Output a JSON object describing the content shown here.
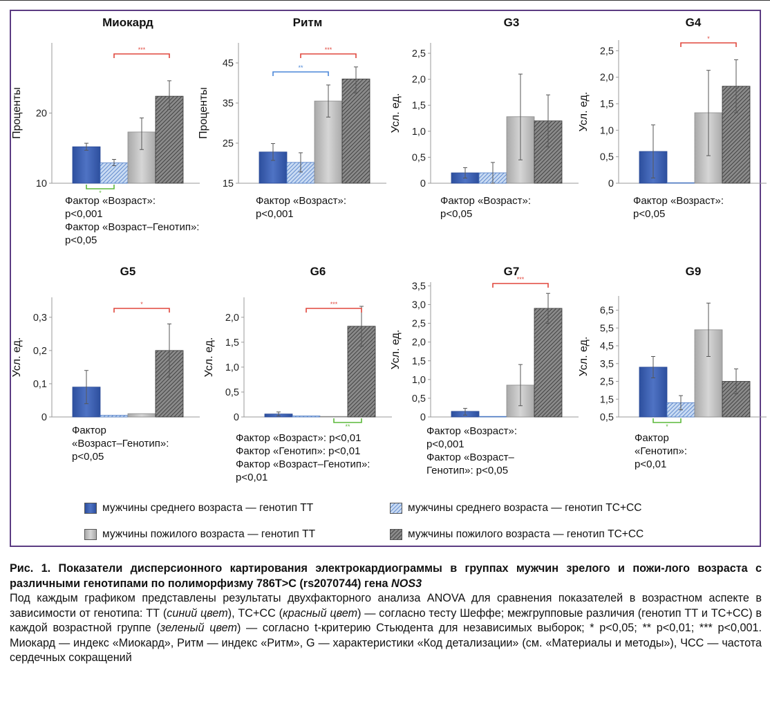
{
  "chart_data": [
    {
      "type": "bar",
      "title": "Миокард",
      "ylabel": "Проценты",
      "ylim": [
        10,
        30
      ],
      "yticks": [
        "10",
        "20"
      ],
      "ytick_values": [
        10,
        20
      ],
      "series": [
        {
          "name": "мужчины среднего возраста — генотип ТТ",
          "value": 15.2,
          "err": [
            14.7,
            15.7
          ]
        },
        {
          "name": "мужчины среднего возраста — генотип ТС+СС",
          "value": 12.9,
          "err": [
            12.5,
            13.4
          ]
        },
        {
          "name": "мужчины пожилого возраста — генотип ТТ",
          "value": 17.3,
          "err": [
            14.8,
            19.3
          ]
        },
        {
          "name": "мужчины пожилого возраста — генотип ТС+СС",
          "value": 22.4,
          "err": [
            20.5,
            24.6
          ]
        }
      ],
      "brackets": [
        {
          "color": "red",
          "from": 1,
          "to": 3,
          "label": "***",
          "pos": "top"
        },
        {
          "color": "green",
          "from": 0,
          "to": 1,
          "label": "*",
          "pos": "bottom"
        }
      ],
      "notes": [
        "Фактор «Возраст»:",
        "p<0,001",
        "Фактор «Возраст–Генотип»:",
        "p<0,05"
      ]
    },
    {
      "type": "bar",
      "title": "Ритм",
      "ylabel": "Проценты",
      "ylim": [
        15,
        50
      ],
      "yticks": [
        "15",
        "25",
        "35",
        "45"
      ],
      "ytick_values": [
        15,
        25,
        35,
        45
      ],
      "series": [
        {
          "name": "ТТ ср.",
          "value": 22.8,
          "err": [
            20.7,
            24.9
          ]
        },
        {
          "name": "ТС+СС ср.",
          "value": 20.2,
          "err": [
            17.8,
            22.6
          ]
        },
        {
          "name": "ТТ пож.",
          "value": 35.5,
          "err": [
            31.5,
            39.5
          ]
        },
        {
          "name": "ТС+СС пож.",
          "value": 41.0,
          "err": [
            37.5,
            44.0
          ]
        }
      ],
      "brackets": [
        {
          "color": "red",
          "from": 1,
          "to": 3,
          "label": "***",
          "pos": "top"
        },
        {
          "color": "blue",
          "from": 0,
          "to": 2,
          "label": "**",
          "pos": "top2"
        }
      ],
      "notes": [
        "Фактор «Возраст»:",
        "p<0,001"
      ]
    },
    {
      "type": "bar",
      "title": "G3",
      "ylabel": "Усл. ед.",
      "ylim": [
        0,
        2.7
      ],
      "yticks": [
        "0",
        "0,5",
        "1,0",
        "1,5",
        "2,0",
        "2,5"
      ],
      "ytick_values": [
        0,
        0.5,
        1,
        1.5,
        2,
        2.5
      ],
      "series": [
        {
          "name": "ТТ ср.",
          "value": 0.2,
          "err": [
            0.1,
            0.3
          ]
        },
        {
          "name": "ТС+СС ср.",
          "value": 0.2,
          "err": [
            0.0,
            0.4
          ]
        },
        {
          "name": "ТТ пож.",
          "value": 1.28,
          "err": [
            0.45,
            2.1
          ]
        },
        {
          "name": "ТС+СС пож.",
          "value": 1.2,
          "err": [
            0.7,
            1.7
          ]
        }
      ],
      "brackets": [],
      "notes": [
        "Фактор «Возраст»:",
        "p<0,05"
      ]
    },
    {
      "type": "bar",
      "title": "G4",
      "ylabel": "Усл. ед.",
      "ylim": [
        0,
        2.7
      ],
      "yticks": [
        "0",
        "0,5",
        "1,0",
        "1,5",
        "2,0",
        "2,5"
      ],
      "ytick_values": [
        0,
        0.5,
        1,
        1.5,
        2,
        2.5
      ],
      "series": [
        {
          "name": "ТТ ср.",
          "value": 0.6,
          "err": [
            0.1,
            1.1
          ]
        },
        {
          "name": "ТС+СС ср.",
          "value": 0.0,
          "err": null
        },
        {
          "name": "ТТ пож.",
          "value": 1.33,
          "err": [
            0.52,
            2.13
          ]
        },
        {
          "name": "ТС+СС пож.",
          "value": 1.83,
          "err": [
            1.33,
            2.33
          ]
        }
      ],
      "brackets": [
        {
          "color": "red",
          "from": 1,
          "to": 3,
          "label": "*",
          "pos": "top"
        }
      ],
      "notes": [
        "Фактор «Возраст»:",
        "p<0,05"
      ]
    },
    {
      "type": "bar",
      "title": "G5",
      "ylabel": "Усл. ед.",
      "ylim": [
        0,
        0.36
      ],
      "yticks": [
        "0",
        "0,1",
        "0,2",
        "0,3"
      ],
      "ytick_values": [
        0,
        0.1,
        0.2,
        0.3
      ],
      "series": [
        {
          "name": "ТТ ср.",
          "value": 0.09,
          "err": [
            0.04,
            0.14
          ]
        },
        {
          "name": "ТС+СС ср.",
          "value": 0.005,
          "err": null
        },
        {
          "name": "ТТ пож.",
          "value": 0.01,
          "err": null
        },
        {
          "name": "ТС+СС пож.",
          "value": 0.2,
          "err": [
            0.12,
            0.28
          ]
        }
      ],
      "brackets": [
        {
          "color": "red",
          "from": 1,
          "to": 3,
          "label": "*",
          "pos": "top"
        }
      ],
      "notes": [
        "Фактор",
        "«Возраст–Генотип»:",
        "p<0,05"
      ]
    },
    {
      "type": "bar",
      "title": "G6",
      "ylabel": "Усл. ед.",
      "ylim": [
        0,
        2.4
      ],
      "yticks": [
        "0",
        "0,5",
        "1,0",
        "1,5",
        "2,0"
      ],
      "ytick_values": [
        0,
        0.5,
        1,
        1.5,
        2
      ],
      "series": [
        {
          "name": "ТТ ср.",
          "value": 0.06,
          "err": [
            0.02,
            0.1
          ]
        },
        {
          "name": "ТС+СС ср.",
          "value": 0.02,
          "err": null
        },
        {
          "name": "ТТ пож.",
          "value": 0.0,
          "err": null
        },
        {
          "name": "ТС+СС пож.",
          "value": 1.82,
          "err": [
            1.42,
            2.22
          ]
        }
      ],
      "brackets": [
        {
          "color": "red",
          "from": 1,
          "to": 3,
          "label": "***",
          "pos": "top"
        },
        {
          "color": "green",
          "from": 2,
          "to": 3,
          "label": "**",
          "pos": "bottom"
        }
      ],
      "notes": [
        "Фактор «Возраст»: p<0,01",
        "Фактор «Генотип»: p<0,01",
        "Фактор «Возраст–Генотип»:",
        "p<0,01"
      ]
    },
    {
      "type": "bar",
      "title": "G7",
      "ylabel": "Усл. ед.",
      "ylim": [
        0,
        3.6
      ],
      "yticks": [
        "0",
        "0,5",
        "1,0",
        "1,5",
        "2,0",
        "2,5",
        "3,0",
        "3,5"
      ],
      "ytick_values": [
        0,
        0.5,
        1,
        1.5,
        2,
        2.5,
        3,
        3.5
      ],
      "series": [
        {
          "name": "ТТ ср.",
          "value": 0.15,
          "err": [
            0.05,
            0.23
          ]
        },
        {
          "name": "ТС+СС ср.",
          "value": 0.0,
          "err": null
        },
        {
          "name": "ТТ пож.",
          "value": 0.85,
          "err": [
            0.3,
            1.4
          ]
        },
        {
          "name": "ТС+СС пож.",
          "value": 2.9,
          "err": [
            2.5,
            3.3
          ]
        }
      ],
      "brackets": [
        {
          "color": "red",
          "from": 1,
          "to": 3,
          "label": "***",
          "pos": "top"
        }
      ],
      "notes": [
        "Фактор «Возраст»:",
        "p<0,001",
        "Фактор «Возраст–",
        "Генотип»: p<0,05"
      ]
    },
    {
      "type": "bar",
      "title": "G9",
      "ylabel": "Усл. ед.",
      "ylim": [
        0.5,
        7.3
      ],
      "yticks": [
        "0,5",
        "1,5",
        "2,5",
        "3,5",
        "4,5",
        "5,5",
        "6,5"
      ],
      "ytick_values": [
        0.5,
        1.5,
        2.5,
        3.5,
        4.5,
        5.5,
        6.5
      ],
      "series": [
        {
          "name": "ТТ ср.",
          "value": 3.3,
          "err": [
            2.7,
            3.9
          ]
        },
        {
          "name": "ТС+СС ср.",
          "value": 1.3,
          "err": [
            0.9,
            1.7
          ]
        },
        {
          "name": "ТТ пож.",
          "value": 5.4,
          "err": [
            3.9,
            6.9
          ]
        },
        {
          "name": "ТС+СС пож.",
          "value": 2.5,
          "err": [
            1.8,
            3.2
          ]
        }
      ],
      "brackets": [
        {
          "color": "green",
          "from": 0,
          "to": 1,
          "label": "*",
          "pos": "bottom"
        }
      ],
      "notes": [
        "Фактор",
        "«Генотип»:",
        "p<0,01"
      ]
    }
  ],
  "colors": {
    "red": "#e0463c",
    "blue": "#4a86d8",
    "green": "#5cb83a"
  },
  "legend": [
    {
      "label": "мужчины среднего возраста — генотип ТТ",
      "style": "blue-solid"
    },
    {
      "label": "мужчины среднего возраста — генотип ТС+СС",
      "style": "blue-hatch"
    },
    {
      "label": "мужчины пожилого возраста — генотип ТТ",
      "style": "gray-solid"
    },
    {
      "label": "мужчины пожилого возраста — генотип ТС+СС",
      "style": "gray-hatch"
    }
  ],
  "caption": {
    "title_a": "Рис. 1. Показатели дисперсионного картирования электрокардиограммы в группах мужчин зрелого и пожи-лого возраста с различными генотипами по полиморфизму 786Т>С (rs2070744) гена ",
    "title_gene": "NOS3",
    "body_1": "Под каждым графиком представлены результаты двухфакторного анализа ANOVA для сравнения показателей в возрастном аспекте в зависимости от генотипа: ТТ (",
    "body_blue": "синий цвет",
    "body_2": "), ТС+СС (",
    "body_red": "красный цвет",
    "body_3": ") — согласно тесту Шеффе; межгрупповые различия (генотип ТТ и ТС+СС) в каждой возрастной группе (",
    "body_green": "зеленый цвет",
    "body_4": ") — согласно t-критерию Стьюдента для независимых выборок; * p<0,05; ** p<0,01; *** p<0,001. Миокард — индекс «Миокард», Ритм — индекс «Ритм», G — характеристики «Код детализации» (см. «Материалы и методы»), ЧСС — частота сердечных сокращений"
  }
}
